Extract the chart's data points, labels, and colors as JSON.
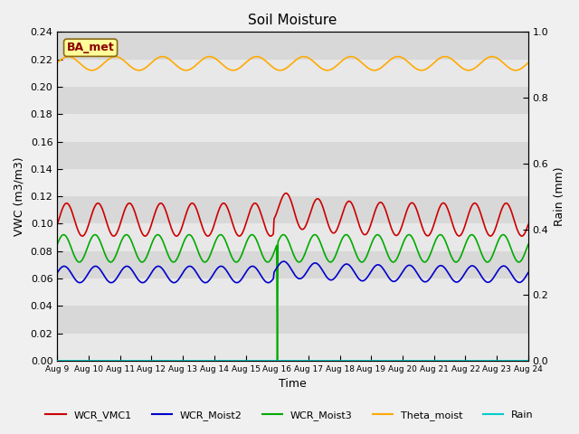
{
  "title": "Soil Moisture",
  "xlabel": "Time",
  "ylabel_left": "VWC (m3/m3)",
  "ylabel_right": "Rain (mm)",
  "xlim": [
    0,
    15
  ],
  "ylim_left": [
    0.0,
    0.24
  ],
  "ylim_right": [
    0.0,
    1.0
  ],
  "yticks_left": [
    0.0,
    0.02,
    0.04,
    0.06,
    0.08,
    0.1,
    0.12,
    0.14,
    0.16,
    0.18,
    0.2,
    0.22,
    0.24
  ],
  "yticks_right_vals": [
    0.0,
    0.2,
    0.4,
    0.6,
    0.8,
    1.0
  ],
  "yticks_right_labels": [
    "0.0",
    "0.2",
    "0.4",
    "0.6",
    "0.8",
    "1.0"
  ],
  "xtick_labels": [
    "Aug 9",
    "Aug 10",
    "Aug 11",
    "Aug 12",
    "Aug 13",
    "Aug 14",
    "Aug 15",
    "Aug 16",
    "Aug 17",
    "Aug 18",
    "Aug 19",
    "Aug 20",
    "Aug 21",
    "Aug 22",
    "Aug 23",
    "Aug 24"
  ],
  "annotation_text": "BA_met",
  "background_color": "#f0f0f0",
  "band_colors": [
    "#e8e8e8",
    "#d8d8d8"
  ],
  "series": {
    "WCR_VMC1": {
      "color": "#cc0000",
      "lw": 1.2
    },
    "WCR_Moist2": {
      "color": "#0000cc",
      "lw": 1.2
    },
    "WCR_Moist3": {
      "color": "#00aa00",
      "lw": 1.2
    },
    "Theta_moist": {
      "color": "#ffaa00",
      "lw": 1.2
    },
    "Rain": {
      "color": "#00cccc",
      "lw": 1.2
    }
  }
}
